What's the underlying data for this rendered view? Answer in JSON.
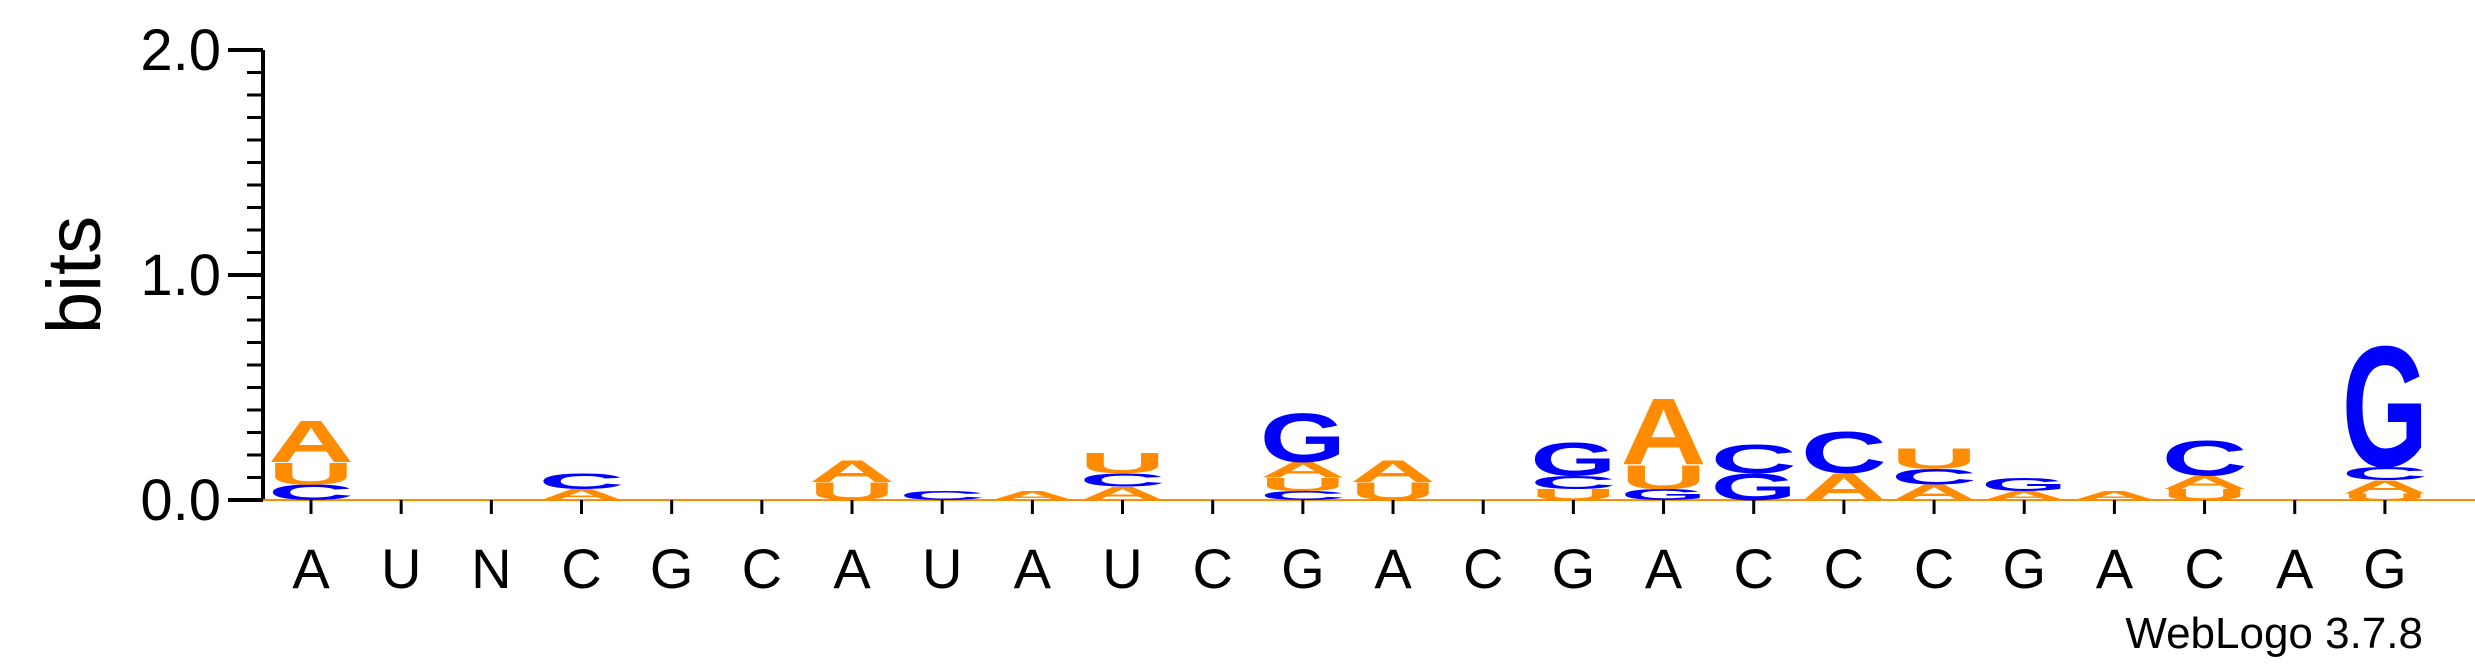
{
  "chart_data": {
    "type": "sequence-logo",
    "ylabel": "bits",
    "ylim": [
      0,
      2.0
    ],
    "yticks": [
      "0.0",
      "1.0",
      "2.0"
    ],
    "credit": "WebLogo 3.7.8",
    "colors": {
      "A": "#FF8C00",
      "U": "#FF8C00",
      "G": "#0000FF",
      "C": "#0000FF"
    },
    "positions": [
      {
        "label": "A",
        "stack": [
          {
            "l": "C",
            "h": 0.07
          },
          {
            "l": "U",
            "h": 0.1
          },
          {
            "l": "A",
            "h": 0.19
          }
        ]
      },
      {
        "label": "U",
        "stack": []
      },
      {
        "label": "N",
        "stack": []
      },
      {
        "label": "C",
        "stack": [
          {
            "l": "A",
            "h": 0.05
          },
          {
            "l": "C",
            "h": 0.07
          }
        ]
      },
      {
        "label": "G",
        "stack": []
      },
      {
        "label": "C",
        "stack": []
      },
      {
        "label": "A",
        "stack": [
          {
            "l": "U",
            "h": 0.08
          },
          {
            "l": "A",
            "h": 0.1
          }
        ]
      },
      {
        "label": "U",
        "stack": [
          {
            "l": "C",
            "h": 0.04
          }
        ]
      },
      {
        "label": "A",
        "stack": [
          {
            "l": "A",
            "h": 0.04
          }
        ]
      },
      {
        "label": "U",
        "stack": [
          {
            "l": "A",
            "h": 0.06
          },
          {
            "l": "C",
            "h": 0.06
          },
          {
            "l": "U",
            "h": 0.09
          }
        ]
      },
      {
        "label": "C",
        "stack": []
      },
      {
        "label": "G",
        "stack": [
          {
            "l": "C",
            "h": 0.04
          },
          {
            "l": "U",
            "h": 0.06
          },
          {
            "l": "A",
            "h": 0.07
          },
          {
            "l": "G",
            "h": 0.22
          }
        ]
      },
      {
        "label": "A",
        "stack": [
          {
            "l": "U",
            "h": 0.08
          },
          {
            "l": "A",
            "h": 0.1
          }
        ]
      },
      {
        "label": "C",
        "stack": []
      },
      {
        "label": "G",
        "stack": [
          {
            "l": "U",
            "h": 0.05
          },
          {
            "l": "C",
            "h": 0.06
          },
          {
            "l": "G",
            "h": 0.15
          }
        ]
      },
      {
        "label": "A",
        "stack": [
          {
            "l": "G",
            "h": 0.05
          },
          {
            "l": "U",
            "h": 0.11
          },
          {
            "l": "A",
            "h": 0.3
          }
        ]
      },
      {
        "label": "C",
        "stack": [
          {
            "l": "G",
            "h": 0.12
          },
          {
            "l": "C",
            "h": 0.13
          }
        ]
      },
      {
        "label": "C",
        "stack": [
          {
            "l": "A",
            "h": 0.12
          },
          {
            "l": "C",
            "h": 0.19
          }
        ]
      },
      {
        "label": "C",
        "stack": [
          {
            "l": "A",
            "h": 0.07
          },
          {
            "l": "C",
            "h": 0.07
          },
          {
            "l": "U",
            "h": 0.09
          }
        ]
      },
      {
        "label": "G",
        "stack": [
          {
            "l": "A",
            "h": 0.04
          },
          {
            "l": "G",
            "h": 0.06
          }
        ]
      },
      {
        "label": "A",
        "stack": [
          {
            "l": "A",
            "h": 0.04
          }
        ]
      },
      {
        "label": "C",
        "stack": [
          {
            "l": "U",
            "h": 0.05
          },
          {
            "l": "A",
            "h": 0.06
          },
          {
            "l": "C",
            "h": 0.16
          }
        ]
      },
      {
        "label": "A",
        "stack": []
      },
      {
        "label": "G",
        "stack": [
          {
            "l": "U",
            "h": 0.03
          },
          {
            "l": "A",
            "h": 0.06
          },
          {
            "l": "C",
            "h": 0.06
          },
          {
            "l": "G",
            "h": 0.55
          }
        ]
      }
    ]
  }
}
